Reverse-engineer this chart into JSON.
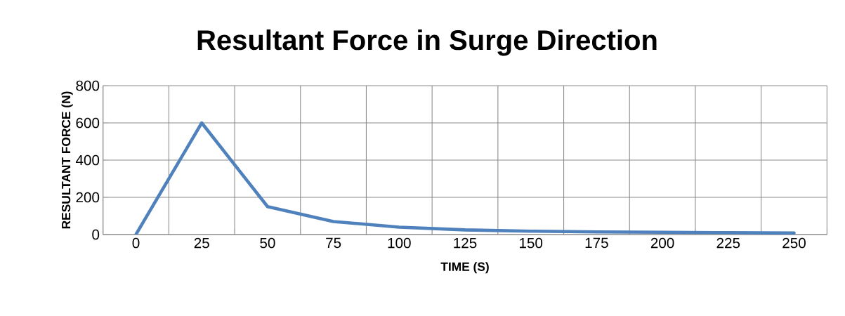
{
  "chart_data": {
    "type": "line",
    "title": "Resultant Force in Surge Direction",
    "xlabel": "TIME (S)",
    "ylabel": "RESULTANT FORCE (N)",
    "categories": [
      "0",
      "25",
      "50",
      "75",
      "100",
      "125",
      "150",
      "175",
      "200",
      "225",
      "250"
    ],
    "series": [
      {
        "color": "#4f81bd",
        "values": [
          0,
          600,
          150,
          70,
          40,
          25,
          18,
          14,
          12,
          10,
          8
        ]
      }
    ],
    "ylim": [
      0,
      800
    ],
    "yticks": [
      0,
      200,
      400,
      600,
      800
    ],
    "grid": true,
    "marker": "none",
    "line_style": "solid"
  }
}
